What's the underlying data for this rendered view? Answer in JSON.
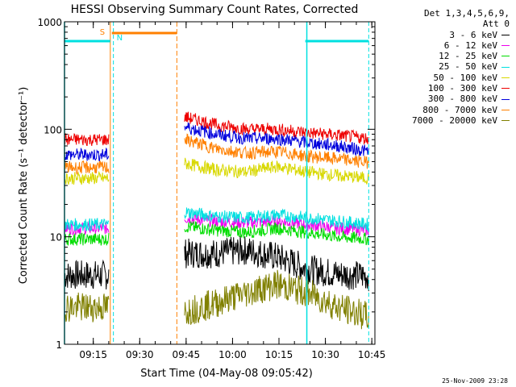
{
  "chart_data": {
    "type": "line",
    "title": "HESSI Observing Summary Count Rates, Corrected",
    "xlabel": "Start Time (04-May-08 09:05:42)",
    "ylabel": "Corrected Count Rate (s⁻¹ detector⁻¹)",
    "yscale": "log",
    "ylim": [
      1,
      1000
    ],
    "xlim_minutes": [
      "09:05:42",
      "10:46:00"
    ],
    "x_ticks": [
      "09:15",
      "09:30",
      "09:45",
      "10:00",
      "10:15",
      "10:30",
      "10:45"
    ],
    "y_ticks": [
      "1",
      "10",
      "100",
      "1000"
    ],
    "legend_title": [
      "Det 1,3,4,5,6,9,",
      "Att 0"
    ],
    "legend_position": "right",
    "series": [
      {
        "name": "3 - 6 keV",
        "color": "#000000",
        "segments": [
          {
            "time": [
              "09:05:42",
              "09:20:00"
            ],
            "level": 4.4
          },
          {
            "time": [
              "09:44:30",
              "10:44:00"
            ],
            "level": [
              7.0,
              7.0,
              7.5,
              6.5,
              5.0,
              4.5,
              4.3
            ]
          }
        ]
      },
      {
        "name": "6 - 12 keV",
        "color": "#ee00ee",
        "segments": [
          {
            "time": [
              "09:05:42",
              "09:20:00"
            ],
            "level": 12
          },
          {
            "time": [
              "09:44:30",
              "10:44:00"
            ],
            "level": [
              15,
              14,
              13.5,
              14,
              13,
              12,
              11.5
            ]
          }
        ]
      },
      {
        "name": "12 - 25 keV",
        "color": "#00dd00",
        "segments": [
          {
            "time": [
              "09:05:42",
              "09:20:00"
            ],
            "level": 9.5
          },
          {
            "time": [
              "09:44:30",
              "10:44:00"
            ],
            "level": [
              12.5,
              11.5,
              11,
              12,
              11,
              10,
              9.5
            ]
          }
        ]
      },
      {
        "name": "25 - 50 keV",
        "color": "#00e0e0",
        "segments": [
          {
            "time": [
              "09:05:42",
              "09:20:00"
            ],
            "level": 13
          },
          {
            "time": [
              "09:44:30",
              "10:44:00"
            ],
            "level": [
              17,
              15.5,
              15,
              16,
              15,
              14,
              13
            ]
          }
        ]
      },
      {
        "name": "50 - 100 keV",
        "color": "#d8d800",
        "segments": [
          {
            "time": [
              "09:05:42",
              "09:20:00"
            ],
            "level": 35
          },
          {
            "time": [
              "09:44:30",
              "10:44:00"
            ],
            "level": [
              48,
              42,
              40,
              45,
              40,
              37,
              35
            ]
          }
        ]
      },
      {
        "name": "100 - 300 keV",
        "color": "#ee0000",
        "segments": [
          {
            "time": [
              "09:05:42",
              "09:20:00"
            ],
            "level": 80
          },
          {
            "time": [
              "09:44:30",
              "10:44:00"
            ],
            "level": [
              130,
              110,
              100,
              100,
              93,
              88,
              82
            ]
          }
        ]
      },
      {
        "name": "300 - 800 keV",
        "color": "#0000dd",
        "segments": [
          {
            "time": [
              "09:05:42",
              "09:20:00"
            ],
            "level": 58
          },
          {
            "time": [
              "09:44:30",
              "10:44:00"
            ],
            "level": [
              105,
              90,
              82,
              82,
              75,
              70,
              62
            ]
          }
        ]
      },
      {
        "name": "800 - 7000 keV",
        "color": "#ff8000",
        "segments": [
          {
            "time": [
              "09:05:42",
              "09:20:00"
            ],
            "level": 44
          },
          {
            "time": [
              "09:44:30",
              "10:44:00"
            ],
            "level": [
              80,
              66,
              60,
              62,
              56,
              53,
              49
            ]
          }
        ]
      },
      {
        "name": "7000 - 20000 keV",
        "color": "#808000",
        "segments": [
          {
            "time": [
              "09:05:42",
              "09:20:00"
            ],
            "level": 2.2
          },
          {
            "time": [
              "09:44:30",
              "10:44:00"
            ],
            "level": [
              2.0,
              2.4,
              3.0,
              3.6,
              3.0,
              2.2,
              1.8
            ]
          }
        ]
      }
    ],
    "markers": {
      "saa_label": "S",
      "night_label": "N",
      "saa_color": "#ff8000",
      "night_color": "#00e0e0",
      "saa_bar": {
        "time": [
          "09:21:00",
          "09:42:00"
        ],
        "level": 660
      },
      "night_bars": [
        {
          "time": [
            "09:05:42",
            "09:20:30"
          ],
          "level": 660
        },
        {
          "time": [
            "10:23:30",
            "10:44:00"
          ],
          "level": 660
        }
      ],
      "saa_lines": [
        "09:20:30",
        "09:42:00"
      ],
      "night_lines_solid": [
        "09:05:42",
        "10:24:00"
      ],
      "night_lines_dashed": [
        "09:21:30",
        "10:44:00"
      ]
    }
  },
  "timestamp": "25-Nov-2009 23:28"
}
